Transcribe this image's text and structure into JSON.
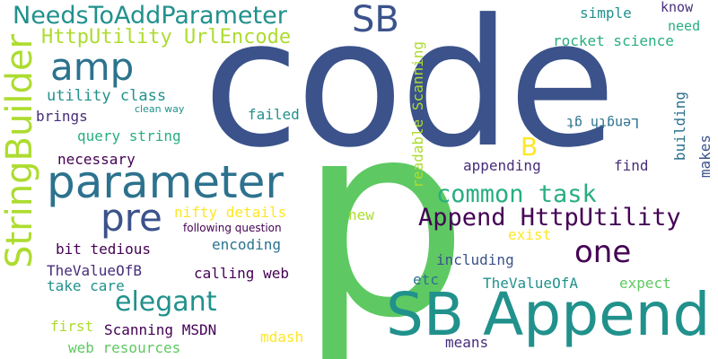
{
  "words": {
    "code": "code",
    "p": "p",
    "sb_append": "SB Append",
    "parameter": "parameter",
    "stringbuilder": "StringBuilder",
    "needstoaddparameter": "NeedsToAddParameter",
    "sb": "SB",
    "amp": "amp",
    "pre": "pre",
    "common_task": "common task",
    "append_httputility": "Append HttpUtility",
    "httputility_urlencode": "HttpUtility UrlEncode",
    "elegant": "elegant",
    "one": "one",
    "b": "B",
    "utility_class": "utility class",
    "readable_scanning": "readable Scanning",
    "simple": "simple",
    "know": "know",
    "need": "need",
    "rocket_science": "rocket science",
    "length_gt": "Length gt",
    "failed": "failed",
    "clean_way": "clean way",
    "brings": "brings",
    "query_string": "query string",
    "necessary": "necessary",
    "appending": "appending",
    "find": "find",
    "building": "building",
    "makes": "makes",
    "nifty_details": "nifty details",
    "new": "new",
    "following_question": "following question",
    "exist": "exist",
    "bit_tedious": "bit tedious",
    "encoding": "encoding",
    "including": "including",
    "thevalueofb": "TheValueOfB",
    "calling_web": "calling web",
    "take_care": "take care",
    "etc": "etc",
    "thevalueofa": "TheValueOfA",
    "expect": "expect",
    "first": "first",
    "scanning_msdn": "Scanning MSDN",
    "mdash": "mdash",
    "web_resources": "web resources",
    "means": "means"
  },
  "colors": {
    "navy": "#3b528b",
    "green": "#5ec962",
    "teal": "#21918c",
    "steel": "#2c728e",
    "purple": "#440154",
    "indigo": "#472d7b",
    "lime": "#addc30",
    "yellow": "#fde725",
    "mint": "#28ae80"
  }
}
